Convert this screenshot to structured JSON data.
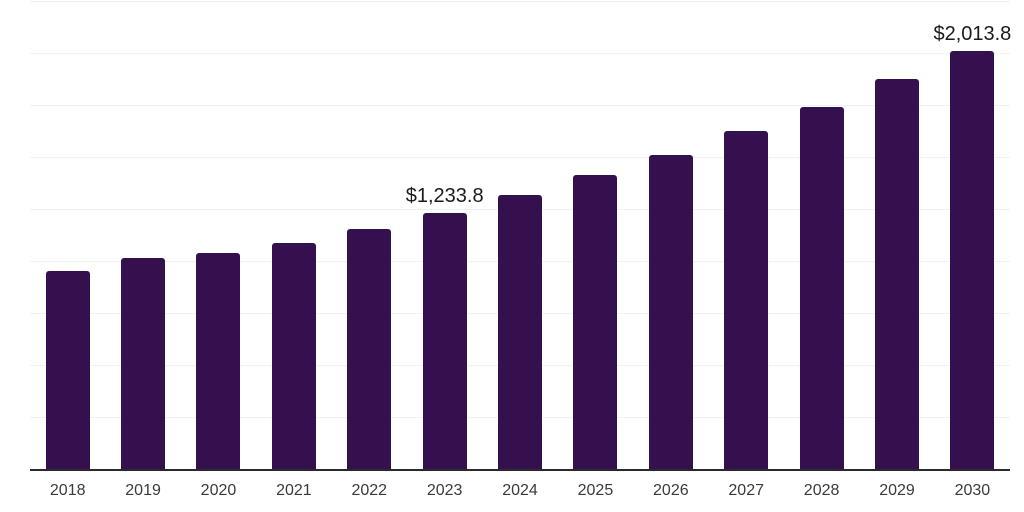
{
  "chart": {
    "background": "#FFFFFF",
    "bar_color": "#34114E",
    "grid_color": "#F1F1F1",
    "axis_color": "#2A2A2A",
    "data_label_color": "#1A1A1A",
    "tick_label_color": "#3A3A3A"
  },
  "chart_data": {
    "type": "bar",
    "title": "",
    "xlabel": "",
    "ylabel": "",
    "categories": [
      "2018",
      "2019",
      "2020",
      "2021",
      "2022",
      "2023",
      "2024",
      "2025",
      "2026",
      "2027",
      "2028",
      "2029",
      "2030"
    ],
    "values": [
      956,
      1020,
      1042,
      1090,
      1157,
      1233.8,
      1322,
      1418,
      1514,
      1629,
      1746,
      1878,
      2013.8
    ],
    "data_labels": [
      {
        "category": "2023",
        "text": "$1,233.8"
      },
      {
        "category": "2030",
        "text": "$2,013.8"
      }
    ],
    "ylim": [
      0,
      2250
    ],
    "y_gridline_step": 250,
    "grid": "horizontal",
    "legend_position": "none",
    "y_axis_labels_visible": false,
    "x_axis_labels_visible": true
  }
}
